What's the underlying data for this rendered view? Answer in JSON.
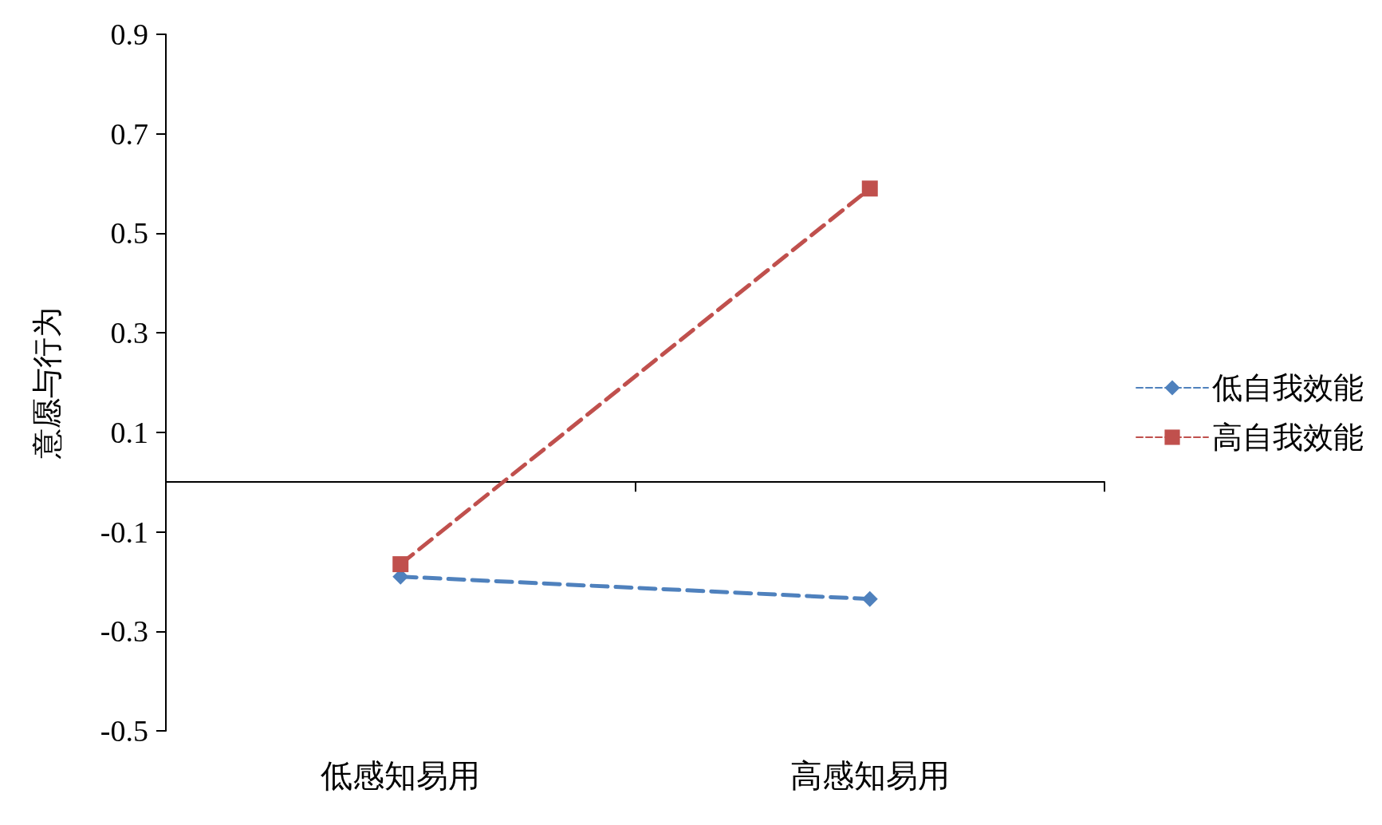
{
  "chart_data": {
    "type": "line",
    "ylabel": "意愿与行为",
    "categories": [
      "低感知易用",
      "高感知易用"
    ],
    "series": [
      {
        "name": "低自我效能",
        "color": "#4f81bd",
        "values": [
          -0.19,
          -0.235
        ],
        "marker": "diamond",
        "line_style": "dashed"
      },
      {
        "name": "高自我效能",
        "color": "#c0504d",
        "values": [
          -0.165,
          0.59
        ],
        "marker": "square",
        "line_style": "dashed"
      }
    ],
    "ylim": [
      -0.5,
      0.9
    ],
    "yticks": [
      -0.5,
      -0.3,
      -0.1,
      0.1,
      0.3,
      0.5,
      0.7,
      0.9
    ],
    "grid": false,
    "legend": "right"
  }
}
